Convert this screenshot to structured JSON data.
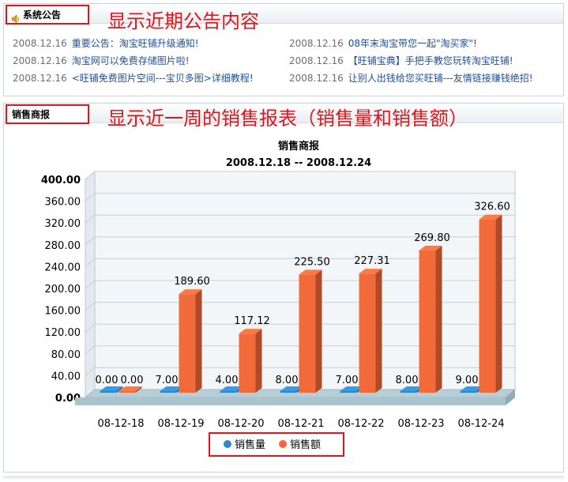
{
  "notice_panel": {
    "tab_label": "系统公告",
    "annotation": "显示近期公告内容",
    "items": [
      {
        "date": "2008.12.16",
        "title": "重要公告：淘宝旺铺升级通知!"
      },
      {
        "date": "2008.12.16",
        "title": "淘宝网可以免费存储图片啦!"
      },
      {
        "date": "2008.12.16",
        "title": "<旺铺免费图片空间---宝贝多图>详细教程!"
      },
      {
        "date": "2008.12.16",
        "title": "08年末淘宝带您一起\"淘买家\"!"
      },
      {
        "date": "2008.12.16",
        "title": "【旺铺宝典】手把手教您玩转淘宝旺铺!"
      },
      {
        "date": "2008.12.16",
        "title": "让别人出钱给您买旺铺---友情链接赚钱绝招!"
      }
    ]
  },
  "sales_panel": {
    "tab_label": "销售商报",
    "annotation": "显示近一周的销售报表（销售量和销售额）"
  },
  "chart_data": {
    "type": "bar",
    "title": "销售商报",
    "subtitle": "2008.12.18 -- 2008.12.24",
    "categories": [
      "08-12-18",
      "08-12-19",
      "08-12-20",
      "08-12-21",
      "08-12-22",
      "08-12-23",
      "08-12-24"
    ],
    "series": [
      {
        "name": "销售量",
        "color": "#2f86c8",
        "values": [
          0,
          7,
          4,
          8,
          7,
          8,
          9
        ],
        "labels": [
          "0.00",
          "7.00",
          "4.00",
          "8.00",
          "7.00",
          "8.00",
          "9.00"
        ]
      },
      {
        "name": "销售额",
        "color": "#f26a3a",
        "values": [
          0,
          189.6,
          117.12,
          225.5,
          227.31,
          269.8,
          326.6
        ],
        "labels": [
          "0.00",
          "189.60",
          "117.12",
          "225.50",
          "227.31",
          "269.80",
          "326.60"
        ]
      }
    ],
    "ylim": [
      0,
      400
    ],
    "yticks": [
      "0.00",
      "40.00",
      "80.00",
      "120.00",
      "160.00",
      "200.00",
      "240.00",
      "280.00",
      "320.00",
      "360.00",
      "400.00"
    ],
    "grid": true,
    "legend_position": "bottom"
  }
}
